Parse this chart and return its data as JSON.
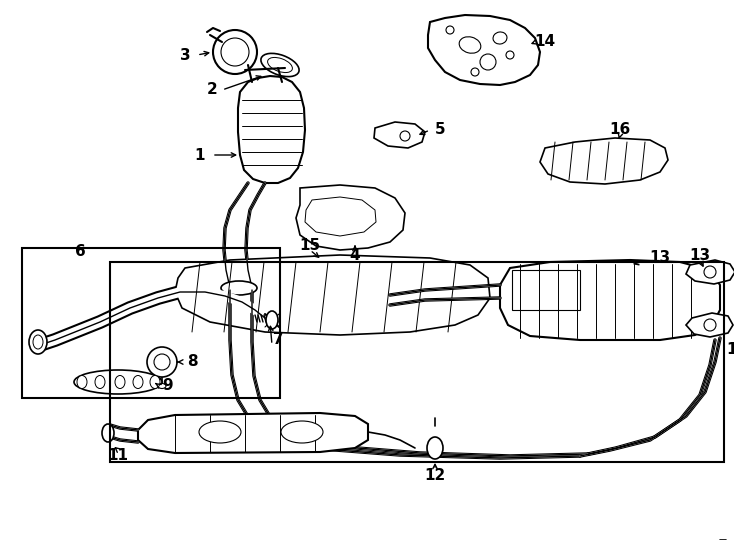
{
  "bg_color": "#ffffff",
  "line_color": "#000000",
  "fig_width": 7.34,
  "fig_height": 5.4,
  "dpi": 100,
  "lw": 1.0,
  "fontsize": 11,
  "fontsize_small": 9
}
